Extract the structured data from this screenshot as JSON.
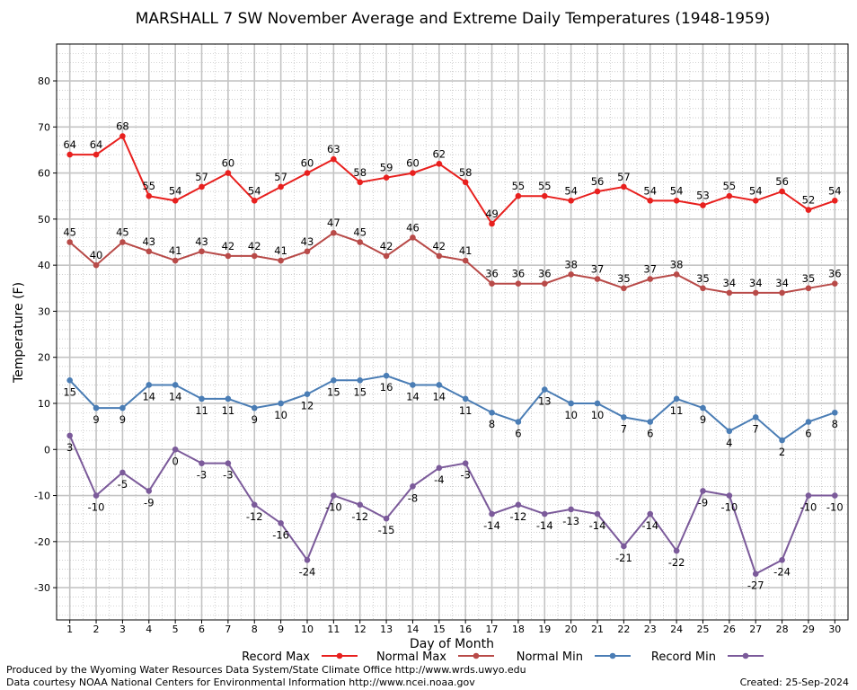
{
  "chart_data": {
    "type": "line",
    "title": "MARSHALL 7 SW November Average and Extreme Daily Temperatures (1948-1959)",
    "xlabel": "Day of Month",
    "ylabel": "Temperature (F)",
    "x": [
      1,
      2,
      3,
      4,
      5,
      6,
      7,
      8,
      9,
      10,
      11,
      12,
      13,
      14,
      15,
      16,
      17,
      18,
      19,
      20,
      21,
      22,
      23,
      24,
      25,
      26,
      27,
      28,
      29,
      30
    ],
    "xlim": [
      0.5,
      30.5
    ],
    "ylim": [
      -37,
      88
    ],
    "yticks": [
      -30,
      -20,
      -10,
      0,
      10,
      20,
      30,
      40,
      50,
      60,
      70,
      80
    ],
    "grid": true,
    "legend_position": "bottom",
    "series": [
      {
        "name": "Record Max",
        "color": "#e8201e",
        "values": [
          64,
          64,
          68,
          55,
          54,
          57,
          60,
          54,
          57,
          60,
          63,
          58,
          59,
          60,
          62,
          58,
          49,
          55,
          55,
          54,
          56,
          57,
          54,
          54,
          53,
          55,
          54,
          56,
          52,
          54
        ]
      },
      {
        "name": "Normal Max",
        "color": "#b84a48",
        "values": [
          45,
          40,
          45,
          43,
          41,
          43,
          42,
          42,
          41,
          43,
          47,
          45,
          42,
          46,
          42,
          41,
          36,
          36,
          36,
          38,
          37,
          35,
          37,
          38,
          35,
          34,
          34,
          34,
          35,
          36
        ]
      },
      {
        "name": "Normal Min",
        "color": "#4a7db5",
        "values": [
          15,
          9,
          9,
          14,
          14,
          11,
          11,
          9,
          10,
          12,
          15,
          15,
          16,
          14,
          14,
          11,
          8,
          6,
          13,
          10,
          10,
          7,
          6,
          11,
          9,
          4,
          7,
          2,
          6,
          8
        ]
      },
      {
        "name": "Record Min",
        "color": "#7b5a9a",
        "values": [
          3,
          -10,
          -5,
          -9,
          0,
          -3,
          -3,
          -12,
          -16,
          -24,
          -10,
          -12,
          -15,
          -8,
          -4,
          -3,
          -14,
          -12,
          -14,
          -13,
          -14,
          -21,
          -14,
          -22,
          -9,
          -10,
          -27,
          -24,
          -10,
          -10
        ]
      }
    ]
  },
  "footer": {
    "line1": "Produced by the Wyoming Water Resources Data System/State Climate Office http://www.wrds.uwyo.edu",
    "line2": "Data courtesy NOAA National Centers for Environmental Information http://www.ncei.noaa.gov",
    "created": "Created:  25-Sep-2024"
  }
}
